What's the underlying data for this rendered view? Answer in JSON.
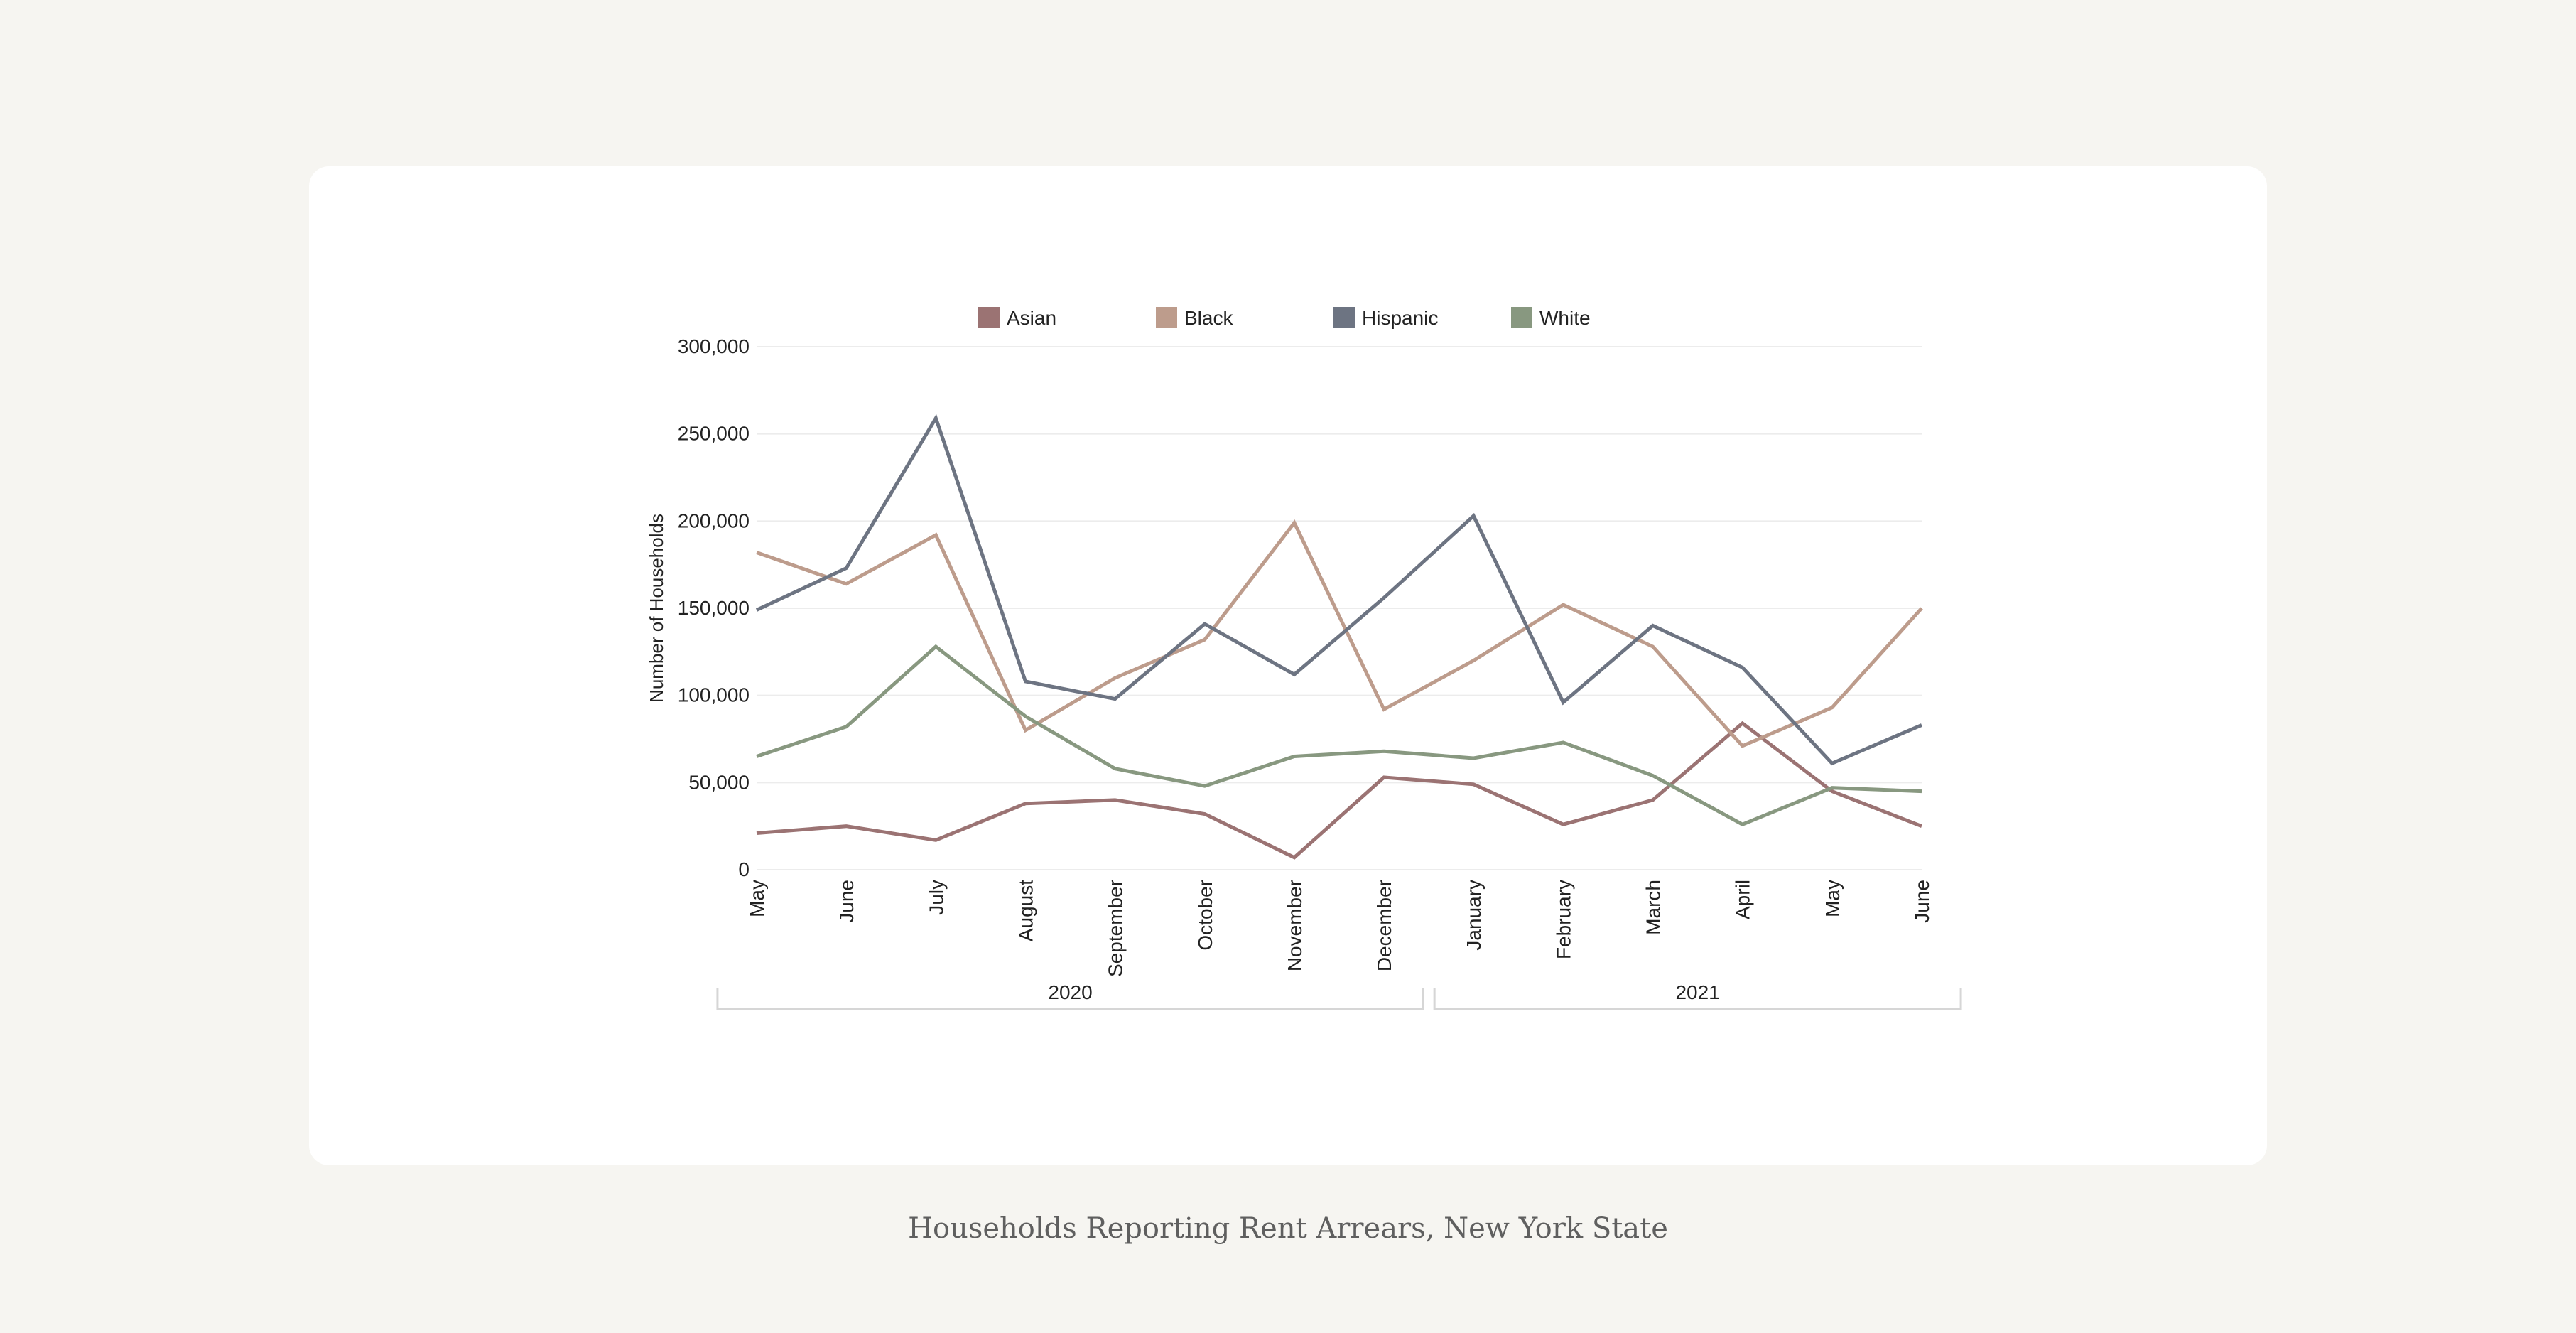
{
  "caption": "Households Reporting Rent Arrears, New York State",
  "chart_data": {
    "type": "line",
    "title": "",
    "xlabel": "",
    "ylabel": "Number of Households",
    "ylim": [
      0,
      300000
    ],
    "yticks": [
      0,
      50000,
      100000,
      150000,
      200000,
      250000,
      300000
    ],
    "ytick_labels": [
      "0",
      "50,000",
      "100,000",
      "150,000",
      "200,000",
      "250,000",
      "300,000"
    ],
    "grid": true,
    "legend_position": "top-center",
    "categories": [
      "May",
      "June",
      "July",
      "August",
      "September",
      "October",
      "November",
      "December",
      "January",
      "February",
      "March",
      "April",
      "May",
      "June"
    ],
    "groups": [
      {
        "label": "2020",
        "start": 0,
        "end": 7
      },
      {
        "label": "2021",
        "start": 8,
        "end": 13
      }
    ],
    "series": [
      {
        "name": "Asian",
        "color": "#9b7373",
        "values": [
          21000,
          25000,
          17000,
          38000,
          40000,
          32000,
          7000,
          53000,
          49000,
          26000,
          40000,
          84000,
          45000,
          25000
        ]
      },
      {
        "name": "Black",
        "color": "#bd9c8c",
        "values": [
          182000,
          164000,
          192000,
          80000,
          110000,
          132000,
          199000,
          92000,
          120000,
          152000,
          128000,
          71000,
          93000,
          150000
        ]
      },
      {
        "name": "Hispanic",
        "color": "#6d7482",
        "values": [
          149000,
          173000,
          259000,
          108000,
          98000,
          141000,
          112000,
          156000,
          203000,
          96000,
          140000,
          116000,
          61000,
          83000
        ]
      },
      {
        "name": "White",
        "color": "#889880",
        "values": [
          65000,
          82000,
          128000,
          88000,
          58000,
          48000,
          65000,
          68000,
          64000,
          73000,
          54000,
          26000,
          47000,
          45000
        ]
      }
    ]
  }
}
